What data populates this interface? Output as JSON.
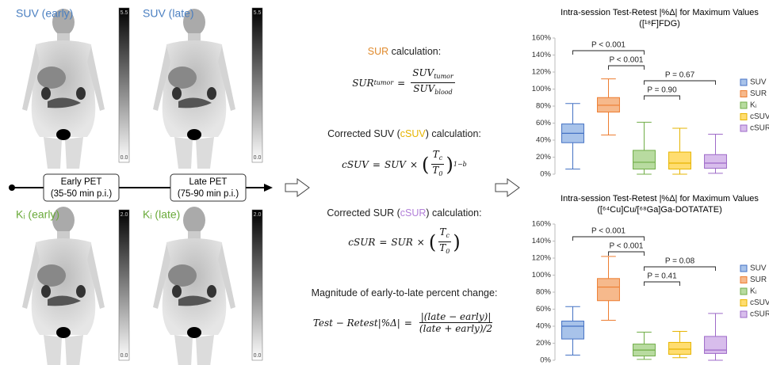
{
  "pet_panels": [
    {
      "label": "SUV (early)",
      "scale_max": "5.5",
      "scale_min": "0.0"
    },
    {
      "label": "SUV (late)",
      "scale_max": "5.5",
      "scale_min": "0.0"
    },
    {
      "label": "Kᵢ (early)",
      "scale_max": "2.0",
      "scale_min": "0.0"
    },
    {
      "label": "Kᵢ (late)",
      "scale_max": "2.0",
      "scale_min": "0.0"
    }
  ],
  "timeline": [
    {
      "title": "Early PET",
      "window": "(35-50 min p.i.)"
    },
    {
      "title": "Late PET",
      "window": "(75-90 min p.i.)"
    }
  ],
  "headings": [
    {
      "parts": [
        {
          "text": "SUR",
          "color": "#e08a2c"
        },
        {
          "text": " calculation:"
        }
      ]
    },
    {
      "parts": [
        {
          "text": "Corrected SUV ("
        },
        {
          "text": "cSUV",
          "color": "#e6b400"
        },
        {
          "text": ") calculation:"
        }
      ]
    },
    {
      "parts": [
        {
          "text": "Corrected SUR ("
        },
        {
          "text": "cSUR",
          "color": "#b27fd8"
        },
        {
          "text": ") calculation:"
        }
      ]
    },
    {
      "parts": [
        {
          "text": "Magnitude of early-to-late percent change:"
        }
      ]
    }
  ],
  "formulas": {
    "sur": {
      "lhs": "SUR",
      "lhs_sub": "tumor",
      "eq": "=",
      "num": "SUV",
      "num_sub": "tumor",
      "den": "SUV",
      "den_sub": "blood"
    },
    "csuv": {
      "lhs": "cSUV",
      "eq": "=",
      "base": "SUV",
      "times": "×",
      "open": "(",
      "num": "T",
      "num_sub": "c",
      "den": "T",
      "den_sub": "0",
      "close": ")",
      "exp": "1−b"
    },
    "csur": {
      "lhs": "cSUR",
      "eq": "=",
      "base": "SUR",
      "times": "×",
      "open": "(",
      "num": "T",
      "num_sub": "c",
      "den": "T",
      "den_sub": "0",
      "close": ")"
    },
    "change": {
      "lhs": "Test − Retest|%Δ|",
      "eq": "=",
      "num": "|(late − early)|",
      "den": "(late + early)/2"
    }
  },
  "chart_data": [
    {
      "type": "box",
      "title": "Intra-session Test-Retest |%Δ| for Maximum Values",
      "subtitle": "([¹⁸F]FDG)",
      "ylim": [
        0,
        160
      ],
      "yticks": [
        {
          "value": 0,
          "label": "0%"
        },
        {
          "value": 20,
          "label": "20%"
        },
        {
          "value": 40,
          "label": "40%"
        },
        {
          "value": 60,
          "label": "60%"
        },
        {
          "value": 80,
          "label": "80%"
        },
        {
          "value": 100,
          "label": "100%"
        },
        {
          "value": 120,
          "label": "120%"
        },
        {
          "value": 140,
          "label": "140%"
        },
        {
          "value": 160,
          "label": "160%"
        }
      ],
      "grid": false,
      "legend": "right",
      "series": [
        {
          "name": "SUV",
          "color": "#4472c4",
          "fill": "#a8c3ea",
          "whislo": 6,
          "q1": 37,
          "med": 48,
          "q3": 59,
          "whishi": 83
        },
        {
          "name": "SUR",
          "color": "#ed7d31",
          "fill": "#f6b98c",
          "whislo": 46,
          "q1": 73,
          "med": 81,
          "q3": 90,
          "whishi": 112
        },
        {
          "name": "Kᵢ",
          "color": "#70ad47",
          "fill": "#b8dba0",
          "whislo": 0,
          "q1": 6,
          "med": 14,
          "q3": 28,
          "whishi": 61
        },
        {
          "name": "cSUV",
          "color": "#e6b400",
          "fill": "#ffdd70",
          "whislo": 0,
          "q1": 6,
          "med": 13,
          "q3": 26,
          "whishi": 54
        },
        {
          "name": "cSUR",
          "color": "#9e6ac8",
          "fill": "#d8bdec",
          "whislo": 1,
          "q1": 7,
          "med": 13,
          "q3": 23,
          "whishi": 47
        }
      ],
      "annotations": [
        {
          "text": "P < 0.001",
          "between": [
            "SUV",
            "Kᵢ"
          ]
        },
        {
          "text": "P < 0.001",
          "between": [
            "SUR",
            "Kᵢ"
          ]
        },
        {
          "text": "P = 0.67",
          "between": [
            "Kᵢ",
            "cSUR"
          ]
        },
        {
          "text": "P = 0.90",
          "between": [
            "Kᵢ",
            "cSUV"
          ]
        }
      ]
    },
    {
      "type": "box",
      "title": "Intra-session Test-Retest |%Δ| for Maximum Values",
      "subtitle": "([⁶⁴Cu]Cu/[⁶⁸Ga]Ga-DOTATATE)",
      "ylim": [
        0,
        160
      ],
      "yticks": [
        {
          "value": 0,
          "label": "0%"
        },
        {
          "value": 20,
          "label": "20%"
        },
        {
          "value": 40,
          "label": "40%"
        },
        {
          "value": 60,
          "label": "60%"
        },
        {
          "value": 80,
          "label": "80%"
        },
        {
          "value": 100,
          "label": "100%"
        },
        {
          "value": 120,
          "label": "120%"
        },
        {
          "value": 140,
          "label": "140%"
        },
        {
          "value": 160,
          "label": "160%"
        }
      ],
      "grid": false,
      "legend": "right",
      "series": [
        {
          "name": "SUV",
          "color": "#4472c4",
          "fill": "#a8c3ea",
          "whislo": 6,
          "q1": 25,
          "med": 40,
          "q3": 46,
          "whishi": 63
        },
        {
          "name": "SUR",
          "color": "#ed7d31",
          "fill": "#f6b98c",
          "whislo": 47,
          "q1": 70,
          "med": 86,
          "q3": 96,
          "whishi": 122
        },
        {
          "name": "Kᵢ",
          "color": "#70ad47",
          "fill": "#b8dba0",
          "whislo": 1,
          "q1": 5,
          "med": 12,
          "q3": 19,
          "whishi": 33
        },
        {
          "name": "cSUV",
          "color": "#e6b400",
          "fill": "#ffdd70",
          "whislo": 3,
          "q1": 7,
          "med": 13,
          "q3": 21,
          "whishi": 34
        },
        {
          "name": "cSUR",
          "color": "#9e6ac8",
          "fill": "#d8bdec",
          "whislo": 0,
          "q1": 8,
          "med": 12,
          "q3": 28,
          "whishi": 55
        }
      ],
      "annotations": [
        {
          "text": "P < 0.001",
          "between": [
            "SUV",
            "Kᵢ"
          ]
        },
        {
          "text": "P < 0.001",
          "between": [
            "SUR",
            "Kᵢ"
          ]
        },
        {
          "text": "P = 0.08",
          "between": [
            "Kᵢ",
            "cSUR"
          ]
        },
        {
          "text": "P = 0.41",
          "between": [
            "Kᵢ",
            "cSUV"
          ]
        }
      ]
    }
  ]
}
